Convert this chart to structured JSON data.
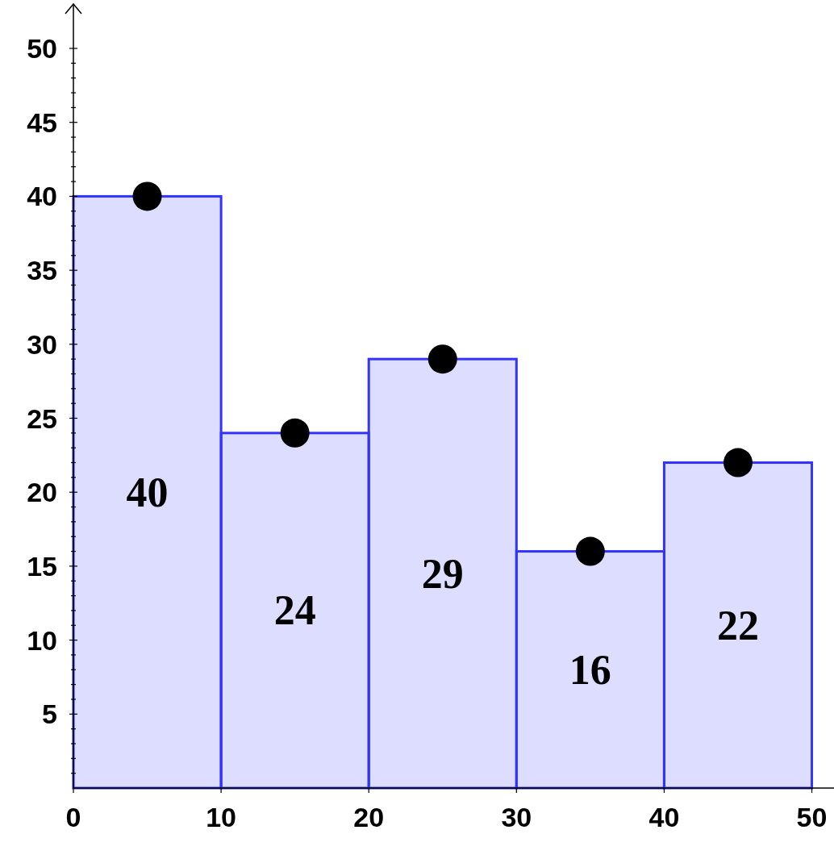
{
  "chart_data": {
    "type": "histogram",
    "bins": [
      0,
      10,
      20,
      30,
      40,
      50
    ],
    "values": [
      40,
      24,
      29,
      16,
      22
    ],
    "color": "#3333ff",
    "value_labels": [
      "40",
      "24",
      "29",
      "16",
      "22"
    ],
    "series": [
      {
        "type": "scatter",
        "x": [
          5,
          15,
          25,
          35,
          45
        ],
        "values": [
          40,
          24,
          29,
          16,
          22
        ],
        "color": "#000000"
      }
    ],
    "marker": "circle",
    "xlim": [
      0,
      51.5
    ],
    "ylim": [
      0,
      53
    ],
    "xticks": [
      0,
      10,
      20,
      30,
      40,
      50
    ],
    "yticks": [
      {
        "value": 1,
        "label": null
      },
      {
        "value": 2,
        "label": null
      },
      {
        "value": 3,
        "label": null
      },
      {
        "value": 4,
        "label": null
      },
      5,
      {
        "value": 6,
        "label": null
      },
      {
        "value": 7,
        "label": null
      },
      {
        "value": 8,
        "label": null
      },
      {
        "value": 9,
        "label": null
      },
      10,
      {
        "value": 11,
        "label": null
      },
      {
        "value": 12,
        "label": null
      },
      {
        "value": 13,
        "label": null
      },
      {
        "value": 14,
        "label": null
      },
      15,
      {
        "value": 16,
        "label": null
      },
      {
        "value": 17,
        "label": null
      },
      {
        "value": 18,
        "label": null
      },
      {
        "value": 19,
        "label": null
      },
      20,
      {
        "value": 21,
        "label": null
      },
      {
        "value": 22,
        "label": null
      },
      {
        "value": 23,
        "label": null
      },
      {
        "value": 24,
        "label": null
      },
      25,
      {
        "value": 26,
        "label": null
      },
      {
        "value": 27,
        "label": null
      },
      {
        "value": 28,
        "label": null
      },
      {
        "value": 29,
        "label": null
      },
      30,
      {
        "value": 31,
        "label": null
      },
      {
        "value": 32,
        "label": null
      },
      {
        "value": 33,
        "label": null
      },
      {
        "value": 34,
        "label": null
      },
      35,
      {
        "value": 36,
        "label": null
      },
      {
        "value": 37,
        "label": null
      },
      {
        "value": 38,
        "label": null
      },
      {
        "value": 39,
        "label": null
      },
      40,
      {
        "value": 41,
        "label": null
      },
      {
        "value": 42,
        "label": null
      },
      {
        "value": 43,
        "label": null
      },
      {
        "value": 44,
        "label": null
      },
      45,
      {
        "value": 46,
        "label": null
      },
      {
        "value": 47,
        "label": null
      },
      {
        "value": 48,
        "label": null
      },
      {
        "value": 49,
        "label": null
      },
      50
    ]
  }
}
